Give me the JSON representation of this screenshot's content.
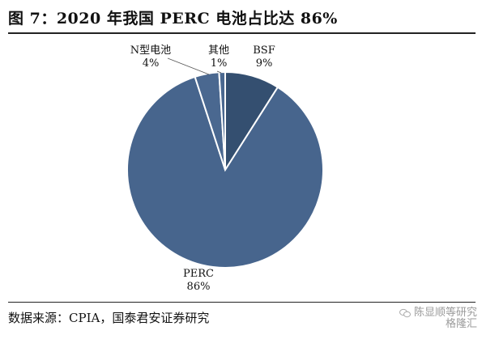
{
  "figure": {
    "title": "图 7：2020 年我国 PERC 电池占比达 86%",
    "source": "数据来源：CPIA，国泰君安证券研究"
  },
  "watermark": {
    "line1": "陈显顺等研究",
    "line2": "格隆汇"
  },
  "chart_data": {
    "type": "pie",
    "title": "图 7：2020 年我国 PERC 电池占比达 86%",
    "slices": [
      {
        "label": "BSF",
        "value": 9,
        "value_label": "9%",
        "color": "#344f70"
      },
      {
        "label": "PERC",
        "value": 86,
        "value_label": "86%",
        "color": "#47658d"
      },
      {
        "label": "N型电池",
        "value": 4,
        "value_label": "4%",
        "color": "#4a6890"
      },
      {
        "label": "其他",
        "value": 1,
        "value_label": "1%",
        "color": "#4a6890"
      }
    ],
    "slice_border": "#ffffff",
    "legend": "none"
  }
}
